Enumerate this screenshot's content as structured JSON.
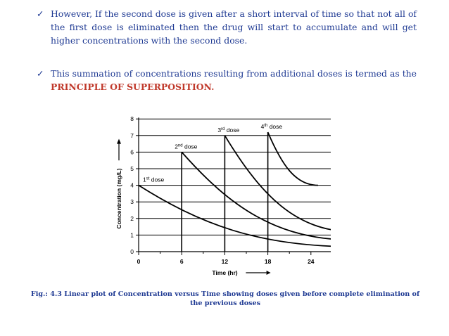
{
  "bullets": [
    {
      "icon": "check-icon",
      "text": "However, If the second dose is given after a short interval of time so that not all of the first dose is eliminated then the drug will start to accumulate and will get higher concentrations with the second dose."
    },
    {
      "icon": "check-icon",
      "text": "This summation of concentrations resulting from additional doses is termed as the",
      "highlight": "PRINCIPLE OF SUPERPOSITION."
    }
  ],
  "caption": "Fig.: 4.3 Linear plot of Concentration versus Time showing doses given before complete elimination of the previous doses",
  "colors": {
    "text": "#1f3a93",
    "highlight": "#c0392b",
    "axis": "#000000"
  },
  "chart_data": {
    "type": "line",
    "xlabel": "Time (hr)",
    "ylabel": "Concentration (mg/L)",
    "xlim": [
      0,
      30
    ],
    "ylim": [
      0,
      8
    ],
    "x_ticks": [
      0,
      6,
      12,
      18,
      24
    ],
    "y_ticks": [
      0,
      1,
      2,
      3,
      4,
      5,
      6,
      7,
      8
    ],
    "grid": "horizontal",
    "doses": [
      {
        "label": "1st dose",
        "x": 0,
        "peak": 4,
        "trough_x": 30,
        "trough": 0.3
      },
      {
        "label": "2nd dose",
        "x": 6,
        "peak": 6,
        "trough_x": 30,
        "trough": 0.7
      },
      {
        "label": "3rd dose",
        "x": 12,
        "peak": 7,
        "trough_x": 30,
        "trough": 1.2
      },
      {
        "label": "4th dose",
        "x": 18,
        "peak": 7.2,
        "trough_x": 25,
        "trough": 4
      }
    ],
    "dose_labels": [
      {
        "base": "1",
        "sup": "st",
        "rest": " dose"
      },
      {
        "base": "2",
        "sup": "nd",
        "rest": " dose"
      },
      {
        "base": "3",
        "sup": "rd",
        "rest": " dose"
      },
      {
        "base": "4",
        "sup": "th",
        "rest": " dose"
      }
    ]
  }
}
